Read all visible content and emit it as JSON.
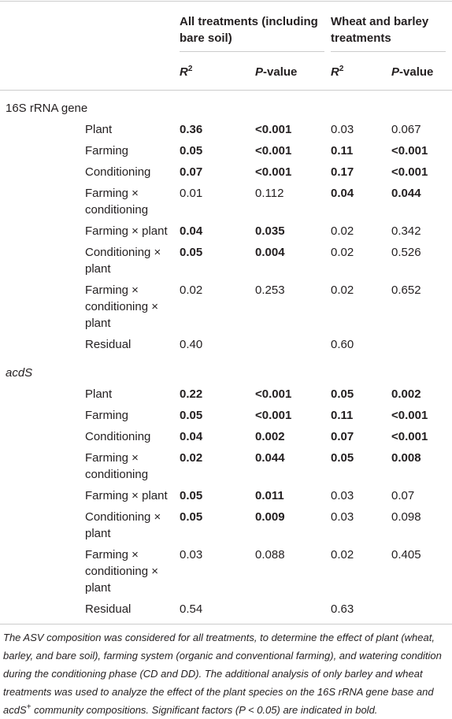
{
  "table": {
    "header": {
      "groups": [
        "All treatments (including bare soil)",
        "Wheat and barley treatments"
      ],
      "columns": [
        [
          {
            "text": "R",
            "italic": true
          },
          {
            "text": "2",
            "sup": true
          }
        ],
        [
          {
            "text": "P",
            "italic": true
          },
          {
            "text": "-value"
          }
        ],
        [
          {
            "text": "R",
            "italic": true
          },
          {
            "text": "2",
            "sup": true
          }
        ],
        [
          {
            "text": "P",
            "italic": true
          },
          {
            "text": "-value"
          }
        ]
      ]
    },
    "sections": [
      {
        "title": [
          {
            "text": "16S rRNA gene"
          }
        ],
        "rows": [
          {
            "label": "Plant",
            "cells": [
              {
                "text": "0.36",
                "bold": true
              },
              {
                "text": "<0.001",
                "bold": true
              },
              {
                "text": "0.03"
              },
              {
                "text": "0.067"
              }
            ]
          },
          {
            "label": "Farming",
            "cells": [
              {
                "text": "0.05",
                "bold": true
              },
              {
                "text": "<0.001",
                "bold": true
              },
              {
                "text": "0.11",
                "bold": true
              },
              {
                "text": "<0.001",
                "bold": true
              }
            ]
          },
          {
            "label": "Conditioning",
            "cells": [
              {
                "text": "0.07",
                "bold": true
              },
              {
                "text": "<0.001",
                "bold": true
              },
              {
                "text": "0.17",
                "bold": true
              },
              {
                "text": "<0.001",
                "bold": true
              }
            ]
          },
          {
            "label": "Farming × conditioning",
            "cells": [
              {
                "text": "0.01"
              },
              {
                "text": "0.112"
              },
              {
                "text": "0.04",
                "bold": true
              },
              {
                "text": "0.044",
                "bold": true
              }
            ]
          },
          {
            "label": "Farming × plant",
            "cells": [
              {
                "text": "0.04",
                "bold": true
              },
              {
                "text": "0.035",
                "bold": true
              },
              {
                "text": "0.02"
              },
              {
                "text": "0.342"
              }
            ]
          },
          {
            "label": "Conditioning × plant",
            "cells": [
              {
                "text": "0.05",
                "bold": true
              },
              {
                "text": "0.004",
                "bold": true
              },
              {
                "text": "0.02"
              },
              {
                "text": "0.526"
              }
            ]
          },
          {
            "label": "Farming × conditioning × plant",
            "cells": [
              {
                "text": "0.02"
              },
              {
                "text": "0.253"
              },
              {
                "text": "0.02"
              },
              {
                "text": "0.652"
              }
            ]
          },
          {
            "label": "Residual",
            "cells": [
              {
                "text": "0.40"
              },
              null,
              {
                "text": "0.60"
              },
              null
            ]
          }
        ]
      },
      {
        "title": [
          {
            "text": "acdS",
            "italic": true
          }
        ],
        "rows": [
          {
            "label": "Plant",
            "cells": [
              {
                "text": "0.22",
                "bold": true
              },
              {
                "text": "<0.001",
                "bold": true
              },
              {
                "text": "0.05",
                "bold": true
              },
              {
                "text": "0.002",
                "bold": true
              }
            ]
          },
          {
            "label": "Farming",
            "cells": [
              {
                "text": "0.05",
                "bold": true
              },
              {
                "text": "<0.001",
                "bold": true
              },
              {
                "text": "0.11",
                "bold": true
              },
              {
                "text": "<0.001",
                "bold": true
              }
            ]
          },
          {
            "label": "Conditioning",
            "cells": [
              {
                "text": "0.04",
                "bold": true
              },
              {
                "text": "0.002",
                "bold": true
              },
              {
                "text": "0.07",
                "bold": true
              },
              {
                "text": "<0.001",
                "bold": true
              }
            ]
          },
          {
            "label": "Farming × conditioning",
            "cells": [
              {
                "text": "0.02",
                "bold": true
              },
              {
                "text": "0.044",
                "bold": true
              },
              {
                "text": "0.05",
                "bold": true
              },
              {
                "text": "0.008",
                "bold": true
              }
            ]
          },
          {
            "label": "Farming × plant",
            "cells": [
              {
                "text": "0.05",
                "bold": true
              },
              {
                "text": "0.011",
                "bold": true
              },
              {
                "text": "0.03"
              },
              {
                "text": "0.07"
              }
            ]
          },
          {
            "label": "Conditioning × plant",
            "cells": [
              {
                "text": "0.05",
                "bold": true
              },
              {
                "text": "0.009",
                "bold": true
              },
              {
                "text": "0.03"
              },
              {
                "text": "0.098"
              }
            ]
          },
          {
            "label": "Farming × conditioning × plant",
            "cells": [
              {
                "text": "0.03"
              },
              {
                "text": "0.088"
              },
              {
                "text": "0.02"
              },
              {
                "text": "0.405"
              }
            ]
          },
          {
            "label": "Residual",
            "cells": [
              {
                "text": "0.54"
              },
              null,
              {
                "text": "0.63"
              },
              null
            ]
          }
        ]
      }
    ]
  },
  "footnote": [
    {
      "text": "The ASV composition was considered for all treatments, to determine the effect of plant (wheat, barley, and bare soil), farming system (organic and conventional farming), and watering condition during the conditioning phase (CD and DD). The additional analysis of only barley and wheat treatments was used to analyze the effect of the plant species on the 16S rRNA gene base and acdS"
    },
    {
      "text": "+",
      "sup": true
    },
    {
      "text": " community compositions. Significant factors (P < 0.05) are indicated in bold."
    }
  ]
}
